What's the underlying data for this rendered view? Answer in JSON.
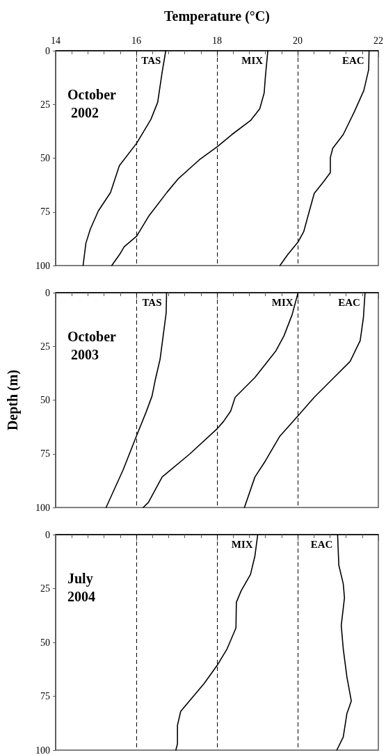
{
  "chart_data": [
    {
      "type": "line",
      "title": "October 2002",
      "xlabel": "Temperature (°C)",
      "xlim": [
        14,
        22
      ],
      "xticks": [
        14,
        16,
        18,
        20,
        22
      ],
      "ylim": [
        100,
        0
      ],
      "yticks": [
        0,
        25,
        50,
        75,
        100
      ],
      "grid": false,
      "legend": false,
      "marker": "none",
      "line_style": "solid",
      "ref_lines": [
        {
          "axis": "x",
          "value": 16,
          "line_style": "dashed"
        },
        {
          "axis": "x",
          "value": 18,
          "line_style": "dashed"
        },
        {
          "axis": "x",
          "value": 20,
          "line_style": "dashed"
        }
      ],
      "series": [
        {
          "name": "TAS",
          "color": "#000000",
          "x": [
            16.73,
            16.64,
            16.53,
            16.36,
            16.01,
            15.58,
            15.36,
            15.06,
            14.86,
            14.75,
            14.68
          ],
          "values": [
            0,
            10,
            24,
            32,
            43,
            53.5,
            66,
            74.5,
            83,
            89.6,
            100
          ]
        },
        {
          "name": "MIX",
          "color": "#000000",
          "x": [
            19.26,
            19.2,
            19.17,
            19.06,
            18.83,
            18.37,
            18.01,
            17.56,
            17.05,
            16.76,
            16.3,
            16.01,
            15.7,
            15.58,
            15.39
          ],
          "values": [
            0,
            12,
            19.6,
            27,
            32.5,
            39,
            44.6,
            50.8,
            59.4,
            65.9,
            77.2,
            86.3,
            91.2,
            95,
            100
          ]
        },
        {
          "name": "EAC",
          "color": "#000000",
          "x": [
            21.77,
            21.76,
            21.64,
            21.41,
            21.13,
            20.87,
            20.81,
            20.81,
            20.64,
            20.41,
            20.26,
            20.15,
            20.01,
            19.75,
            19.56
          ],
          "values": [
            0,
            8.8,
            18.5,
            28.2,
            39,
            45.4,
            49.7,
            56.7,
            61,
            66.4,
            76.6,
            84.2,
            89,
            95,
            100
          ]
        }
      ]
    },
    {
      "type": "line",
      "title": "October 2003",
      "ylabel": "Depth (m)",
      "xlim": [
        14,
        22
      ],
      "xticks": [
        14,
        16,
        18,
        20,
        22
      ],
      "ylim": [
        100,
        0
      ],
      "yticks": [
        0,
        25,
        50,
        75,
        100
      ],
      "tick_labels": "y",
      "grid": false,
      "legend": false,
      "marker": "none",
      "line_style": "solid",
      "ref_lines": [
        {
          "axis": "x",
          "value": 16,
          "line_style": "dashed"
        },
        {
          "axis": "x",
          "value": 18,
          "line_style": "dashed"
        },
        {
          "axis": "x",
          "value": 20,
          "line_style": "dashed"
        }
      ],
      "series": [
        {
          "name": "TAS",
          "color": "#000000",
          "x": [
            16.75,
            16.74,
            16.68,
            16.59,
            16.47,
            16.39,
            16.24,
            16.01,
            15.67,
            15.25
          ],
          "values": [
            0,
            9.4,
            18,
            30.9,
            40.6,
            48.1,
            55.7,
            66.4,
            82.6,
            100
          ]
        },
        {
          "name": "MIX",
          "color": "#000000",
          "x": [
            20.01,
            19.86,
            19.66,
            19.46,
            18.94,
            18.45,
            18.34,
            18.16,
            18.01,
            17.33,
            16.64,
            16.3,
            16.17
          ],
          "values": [
            0,
            10.4,
            20.1,
            27.1,
            39.5,
            48.7,
            55.1,
            60,
            63.2,
            75,
            85.8,
            97.6,
            100
          ]
        },
        {
          "name": "EAC",
          "color": "#000000",
          "x": [
            21.67,
            21.63,
            21.55,
            21.3,
            20.84,
            20.41,
            20.01,
            19.55,
            19.2,
            18.94,
            18.68
          ],
          "values": [
            0,
            11.5,
            22.3,
            32,
            40.6,
            48.7,
            57.3,
            67,
            78.3,
            85.8,
            100
          ]
        }
      ]
    },
    {
      "type": "line",
      "title": "July 2004",
      "xlim": [
        14,
        22
      ],
      "xticks": [
        14,
        16,
        18,
        20,
        22
      ],
      "ylim": [
        100,
        0
      ],
      "yticks": [
        0,
        25,
        50,
        75,
        100
      ],
      "tick_labels": "y",
      "grid": false,
      "legend": false,
      "marker": "none",
      "line_style": "solid",
      "ref_lines": [
        {
          "axis": "x",
          "value": 16,
          "line_style": "dashed"
        },
        {
          "axis": "x",
          "value": 18,
          "line_style": "dashed"
        },
        {
          "axis": "x",
          "value": 20,
          "line_style": "dashed"
        }
      ],
      "series": [
        {
          "name": "MIX",
          "color": "#000000",
          "x": [
            19.01,
            18.94,
            18.83,
            18.6,
            18.48,
            18.47,
            18.25,
            18.01,
            17.68,
            17.1,
            17.02,
            17.02,
            16.98
          ],
          "values": [
            0,
            9.9,
            18.5,
            26,
            31.4,
            43.3,
            53,
            60.5,
            69.1,
            82,
            88.5,
            97.1,
            100
          ]
        },
        {
          "name": "EAC",
          "color": "#000000",
          "x": [
            20.99,
            21.02,
            21.13,
            21.16,
            21.08,
            21.13,
            21.22,
            21.33,
            21.22,
            21.13,
            20.97
          ],
          "values": [
            0,
            14.2,
            22.8,
            29.3,
            42.2,
            53,
            66,
            77.2,
            83.1,
            93.9,
            100
          ]
        }
      ]
    }
  ]
}
